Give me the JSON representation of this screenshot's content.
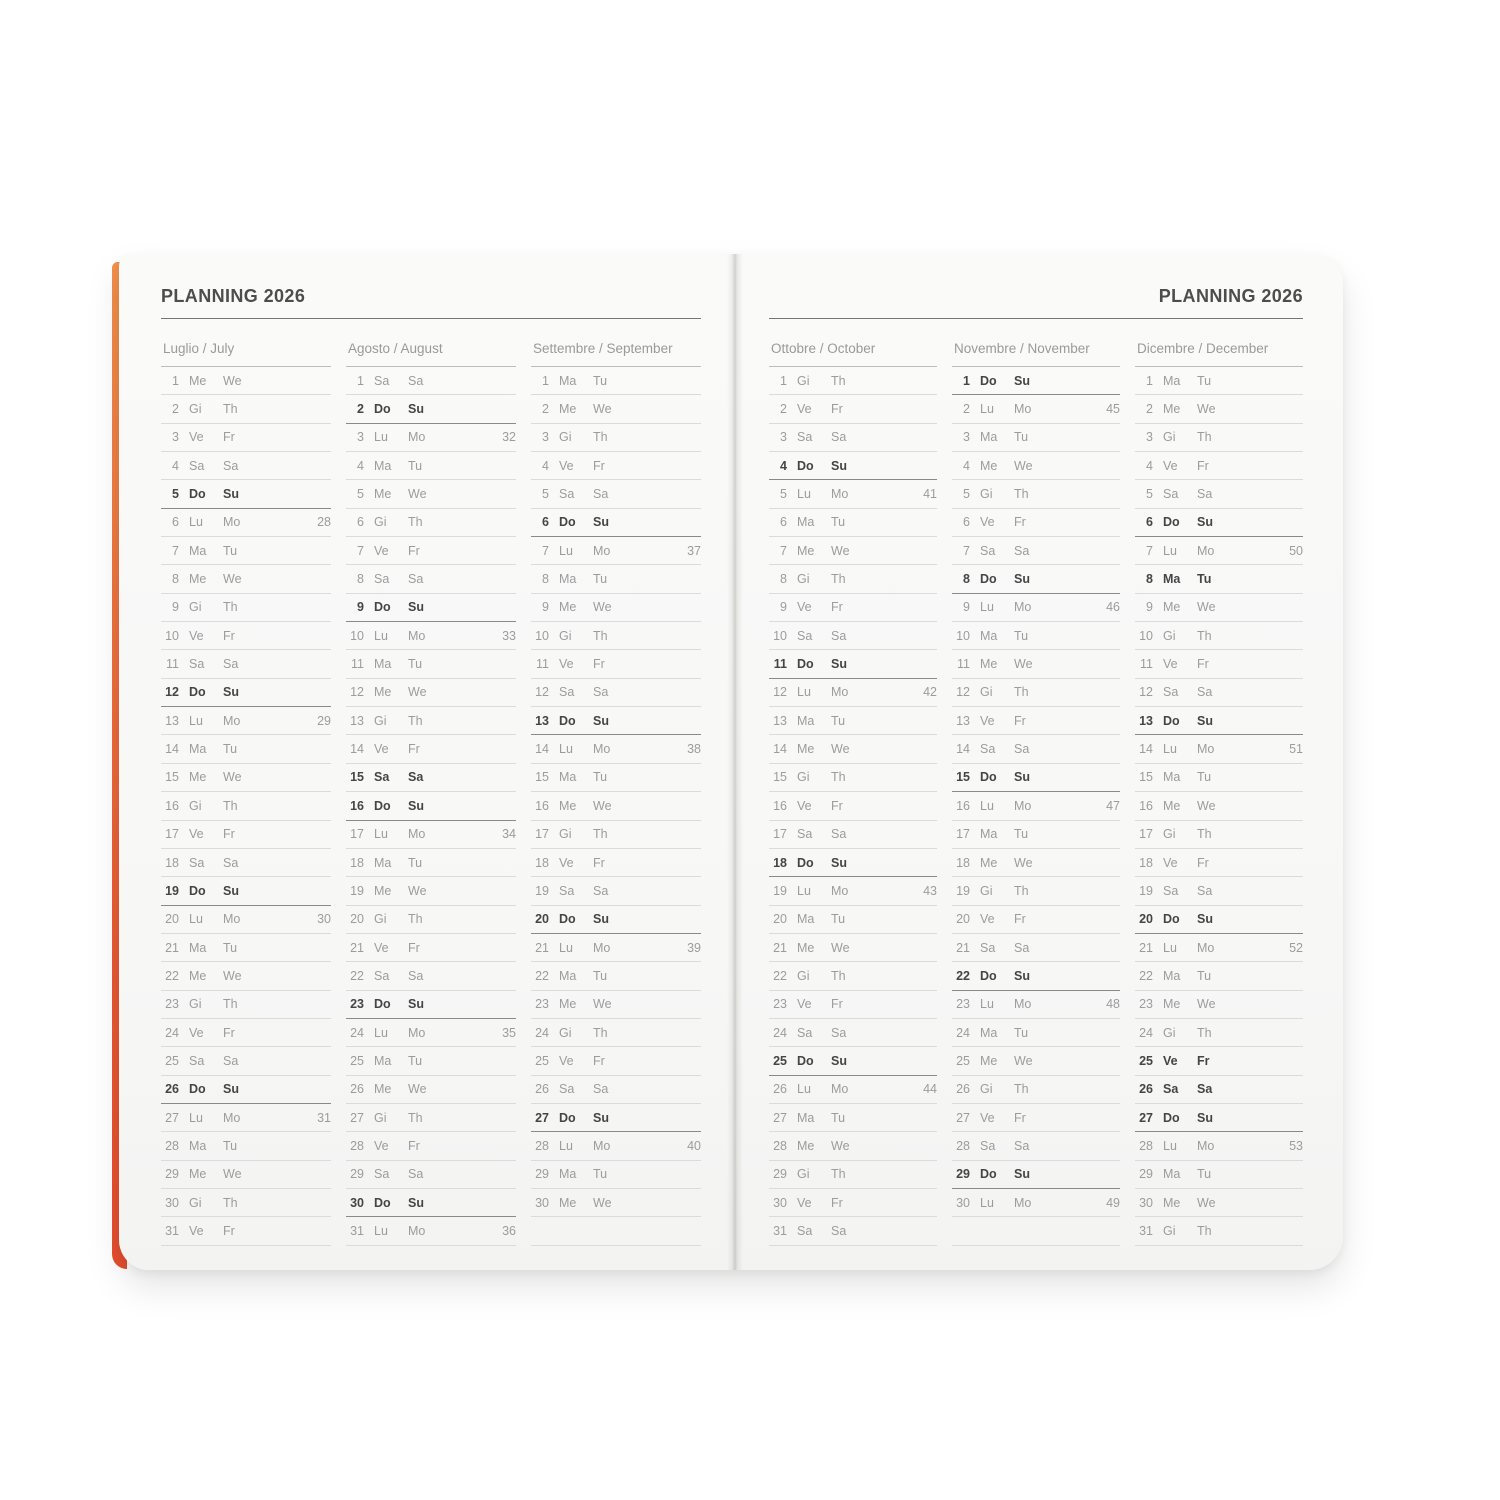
{
  "header": {
    "left_title": "PLANNING 2026",
    "right_title": "PLANNING 2026"
  },
  "colors": {
    "cover_edge_top": "#f2914c",
    "cover_edge_bottom": "#e64e2f",
    "page_background": "#f8f8f7",
    "text_muted": "#9c9c9c",
    "text_bold": "#454545",
    "row_line": "#dbdbda",
    "sunday_line": "#8a8a8a"
  },
  "day_format": [
    "day_number",
    "italian_abbr",
    "english_abbr",
    "week_number",
    "is_bold"
  ],
  "months": [
    {
      "name": "Luglio / July",
      "page": "left",
      "trailing_empty_rows": 0,
      "days": [
        [
          1,
          "Me",
          "We",
          null,
          0
        ],
        [
          2,
          "Gi",
          "Th",
          null,
          0
        ],
        [
          3,
          "Ve",
          "Fr",
          null,
          0
        ],
        [
          4,
          "Sa",
          "Sa",
          null,
          0
        ],
        [
          5,
          "Do",
          "Su",
          null,
          1
        ],
        [
          6,
          "Lu",
          "Mo",
          28,
          0
        ],
        [
          7,
          "Ma",
          "Tu",
          null,
          0
        ],
        [
          8,
          "Me",
          "We",
          null,
          0
        ],
        [
          9,
          "Gi",
          "Th",
          null,
          0
        ],
        [
          10,
          "Ve",
          "Fr",
          null,
          0
        ],
        [
          11,
          "Sa",
          "Sa",
          null,
          0
        ],
        [
          12,
          "Do",
          "Su",
          null,
          1
        ],
        [
          13,
          "Lu",
          "Mo",
          29,
          0
        ],
        [
          14,
          "Ma",
          "Tu",
          null,
          0
        ],
        [
          15,
          "Me",
          "We",
          null,
          0
        ],
        [
          16,
          "Gi",
          "Th",
          null,
          0
        ],
        [
          17,
          "Ve",
          "Fr",
          null,
          0
        ],
        [
          18,
          "Sa",
          "Sa",
          null,
          0
        ],
        [
          19,
          "Do",
          "Su",
          null,
          1
        ],
        [
          20,
          "Lu",
          "Mo",
          30,
          0
        ],
        [
          21,
          "Ma",
          "Tu",
          null,
          0
        ],
        [
          22,
          "Me",
          "We",
          null,
          0
        ],
        [
          23,
          "Gi",
          "Th",
          null,
          0
        ],
        [
          24,
          "Ve",
          "Fr",
          null,
          0
        ],
        [
          25,
          "Sa",
          "Sa",
          null,
          0
        ],
        [
          26,
          "Do",
          "Su",
          null,
          1
        ],
        [
          27,
          "Lu",
          "Mo",
          31,
          0
        ],
        [
          28,
          "Ma",
          "Tu",
          null,
          0
        ],
        [
          29,
          "Me",
          "We",
          null,
          0
        ],
        [
          30,
          "Gi",
          "Th",
          null,
          0
        ],
        [
          31,
          "Ve",
          "Fr",
          null,
          0
        ]
      ]
    },
    {
      "name": "Agosto / August",
      "page": "left",
      "trailing_empty_rows": 0,
      "days": [
        [
          1,
          "Sa",
          "Sa",
          null,
          0
        ],
        [
          2,
          "Do",
          "Su",
          null,
          1
        ],
        [
          3,
          "Lu",
          "Mo",
          32,
          0
        ],
        [
          4,
          "Ma",
          "Tu",
          null,
          0
        ],
        [
          5,
          "Me",
          "We",
          null,
          0
        ],
        [
          6,
          "Gi",
          "Th",
          null,
          0
        ],
        [
          7,
          "Ve",
          "Fr",
          null,
          0
        ],
        [
          8,
          "Sa",
          "Sa",
          null,
          0
        ],
        [
          9,
          "Do",
          "Su",
          null,
          1
        ],
        [
          10,
          "Lu",
          "Mo",
          33,
          0
        ],
        [
          11,
          "Ma",
          "Tu",
          null,
          0
        ],
        [
          12,
          "Me",
          "We",
          null,
          0
        ],
        [
          13,
          "Gi",
          "Th",
          null,
          0
        ],
        [
          14,
          "Ve",
          "Fr",
          null,
          0
        ],
        [
          15,
          "Sa",
          "Sa",
          null,
          1
        ],
        [
          16,
          "Do",
          "Su",
          null,
          1
        ],
        [
          17,
          "Lu",
          "Mo",
          34,
          0
        ],
        [
          18,
          "Ma",
          "Tu",
          null,
          0
        ],
        [
          19,
          "Me",
          "We",
          null,
          0
        ],
        [
          20,
          "Gi",
          "Th",
          null,
          0
        ],
        [
          21,
          "Ve",
          "Fr",
          null,
          0
        ],
        [
          22,
          "Sa",
          "Sa",
          null,
          0
        ],
        [
          23,
          "Do",
          "Su",
          null,
          1
        ],
        [
          24,
          "Lu",
          "Mo",
          35,
          0
        ],
        [
          25,
          "Ma",
          "Tu",
          null,
          0
        ],
        [
          26,
          "Me",
          "We",
          null,
          0
        ],
        [
          27,
          "Gi",
          "Th",
          null,
          0
        ],
        [
          28,
          "Ve",
          "Fr",
          null,
          0
        ],
        [
          29,
          "Sa",
          "Sa",
          null,
          0
        ],
        [
          30,
          "Do",
          "Su",
          null,
          1
        ],
        [
          31,
          "Lu",
          "Mo",
          36,
          0
        ]
      ]
    },
    {
      "name": "Settembre / September",
      "page": "left",
      "trailing_empty_rows": 1,
      "days": [
        [
          1,
          "Ma",
          "Tu",
          null,
          0
        ],
        [
          2,
          "Me",
          "We",
          null,
          0
        ],
        [
          3,
          "Gi",
          "Th",
          null,
          0
        ],
        [
          4,
          "Ve",
          "Fr",
          null,
          0
        ],
        [
          5,
          "Sa",
          "Sa",
          null,
          0
        ],
        [
          6,
          "Do",
          "Su",
          null,
          1
        ],
        [
          7,
          "Lu",
          "Mo",
          37,
          0
        ],
        [
          8,
          "Ma",
          "Tu",
          null,
          0
        ],
        [
          9,
          "Me",
          "We",
          null,
          0
        ],
        [
          10,
          "Gi",
          "Th",
          null,
          0
        ],
        [
          11,
          "Ve",
          "Fr",
          null,
          0
        ],
        [
          12,
          "Sa",
          "Sa",
          null,
          0
        ],
        [
          13,
          "Do",
          "Su",
          null,
          1
        ],
        [
          14,
          "Lu",
          "Mo",
          38,
          0
        ],
        [
          15,
          "Ma",
          "Tu",
          null,
          0
        ],
        [
          16,
          "Me",
          "We",
          null,
          0
        ],
        [
          17,
          "Gi",
          "Th",
          null,
          0
        ],
        [
          18,
          "Ve",
          "Fr",
          null,
          0
        ],
        [
          19,
          "Sa",
          "Sa",
          null,
          0
        ],
        [
          20,
          "Do",
          "Su",
          null,
          1
        ],
        [
          21,
          "Lu",
          "Mo",
          39,
          0
        ],
        [
          22,
          "Ma",
          "Tu",
          null,
          0
        ],
        [
          23,
          "Me",
          "We",
          null,
          0
        ],
        [
          24,
          "Gi",
          "Th",
          null,
          0
        ],
        [
          25,
          "Ve",
          "Fr",
          null,
          0
        ],
        [
          26,
          "Sa",
          "Sa",
          null,
          0
        ],
        [
          27,
          "Do",
          "Su",
          null,
          1
        ],
        [
          28,
          "Lu",
          "Mo",
          40,
          0
        ],
        [
          29,
          "Ma",
          "Tu",
          null,
          0
        ],
        [
          30,
          "Me",
          "We",
          null,
          0
        ]
      ]
    },
    {
      "name": "Ottobre / October",
      "page": "right",
      "trailing_empty_rows": 0,
      "days": [
        [
          1,
          "Gi",
          "Th",
          null,
          0
        ],
        [
          2,
          "Ve",
          "Fr",
          null,
          0
        ],
        [
          3,
          "Sa",
          "Sa",
          null,
          0
        ],
        [
          4,
          "Do",
          "Su",
          null,
          1
        ],
        [
          5,
          "Lu",
          "Mo",
          41,
          0
        ],
        [
          6,
          "Ma",
          "Tu",
          null,
          0
        ],
        [
          7,
          "Me",
          "We",
          null,
          0
        ],
        [
          8,
          "Gi",
          "Th",
          null,
          0
        ],
        [
          9,
          "Ve",
          "Fr",
          null,
          0
        ],
        [
          10,
          "Sa",
          "Sa",
          null,
          0
        ],
        [
          11,
          "Do",
          "Su",
          null,
          1
        ],
        [
          12,
          "Lu",
          "Mo",
          42,
          0
        ],
        [
          13,
          "Ma",
          "Tu",
          null,
          0
        ],
        [
          14,
          "Me",
          "We",
          null,
          0
        ],
        [
          15,
          "Gi",
          "Th",
          null,
          0
        ],
        [
          16,
          "Ve",
          "Fr",
          null,
          0
        ],
        [
          17,
          "Sa",
          "Sa",
          null,
          0
        ],
        [
          18,
          "Do",
          "Su",
          null,
          1
        ],
        [
          19,
          "Lu",
          "Mo",
          43,
          0
        ],
        [
          20,
          "Ma",
          "Tu",
          null,
          0
        ],
        [
          21,
          "Me",
          "We",
          null,
          0
        ],
        [
          22,
          "Gi",
          "Th",
          null,
          0
        ],
        [
          23,
          "Ve",
          "Fr",
          null,
          0
        ],
        [
          24,
          "Sa",
          "Sa",
          null,
          0
        ],
        [
          25,
          "Do",
          "Su",
          null,
          1
        ],
        [
          26,
          "Lu",
          "Mo",
          44,
          0
        ],
        [
          27,
          "Ma",
          "Tu",
          null,
          0
        ],
        [
          28,
          "Me",
          "We",
          null,
          0
        ],
        [
          29,
          "Gi",
          "Th",
          null,
          0
        ],
        [
          30,
          "Ve",
          "Fr",
          null,
          0
        ],
        [
          31,
          "Sa",
          "Sa",
          null,
          0
        ]
      ]
    },
    {
      "name": "Novembre / November",
      "page": "right",
      "trailing_empty_rows": 1,
      "days": [
        [
          1,
          "Do",
          "Su",
          null,
          1
        ],
        [
          2,
          "Lu",
          "Mo",
          45,
          0
        ],
        [
          3,
          "Ma",
          "Tu",
          null,
          0
        ],
        [
          4,
          "Me",
          "We",
          null,
          0
        ],
        [
          5,
          "Gi",
          "Th",
          null,
          0
        ],
        [
          6,
          "Ve",
          "Fr",
          null,
          0
        ],
        [
          7,
          "Sa",
          "Sa",
          null,
          0
        ],
        [
          8,
          "Do",
          "Su",
          null,
          1
        ],
        [
          9,
          "Lu",
          "Mo",
          46,
          0
        ],
        [
          10,
          "Ma",
          "Tu",
          null,
          0
        ],
        [
          11,
          "Me",
          "We",
          null,
          0
        ],
        [
          12,
          "Gi",
          "Th",
          null,
          0
        ],
        [
          13,
          "Ve",
          "Fr",
          null,
          0
        ],
        [
          14,
          "Sa",
          "Sa",
          null,
          0
        ],
        [
          15,
          "Do",
          "Su",
          null,
          1
        ],
        [
          16,
          "Lu",
          "Mo",
          47,
          0
        ],
        [
          17,
          "Ma",
          "Tu",
          null,
          0
        ],
        [
          18,
          "Me",
          "We",
          null,
          0
        ],
        [
          19,
          "Gi",
          "Th",
          null,
          0
        ],
        [
          20,
          "Ve",
          "Fr",
          null,
          0
        ],
        [
          21,
          "Sa",
          "Sa",
          null,
          0
        ],
        [
          22,
          "Do",
          "Su",
          null,
          1
        ],
        [
          23,
          "Lu",
          "Mo",
          48,
          0
        ],
        [
          24,
          "Ma",
          "Tu",
          null,
          0
        ],
        [
          25,
          "Me",
          "We",
          null,
          0
        ],
        [
          26,
          "Gi",
          "Th",
          null,
          0
        ],
        [
          27,
          "Ve",
          "Fr",
          null,
          0
        ],
        [
          28,
          "Sa",
          "Sa",
          null,
          0
        ],
        [
          29,
          "Do",
          "Su",
          null,
          1
        ],
        [
          30,
          "Lu",
          "Mo",
          49,
          0
        ]
      ]
    },
    {
      "name": "Dicembre / December",
      "page": "right",
      "trailing_empty_rows": 0,
      "days": [
        [
          1,
          "Ma",
          "Tu",
          null,
          0
        ],
        [
          2,
          "Me",
          "We",
          null,
          0
        ],
        [
          3,
          "Gi",
          "Th",
          null,
          0
        ],
        [
          4,
          "Ve",
          "Fr",
          null,
          0
        ],
        [
          5,
          "Sa",
          "Sa",
          null,
          0
        ],
        [
          6,
          "Do",
          "Su",
          null,
          1
        ],
        [
          7,
          "Lu",
          "Mo",
          50,
          0
        ],
        [
          8,
          "Ma",
          "Tu",
          null,
          1
        ],
        [
          9,
          "Me",
          "We",
          null,
          0
        ],
        [
          10,
          "Gi",
          "Th",
          null,
          0
        ],
        [
          11,
          "Ve",
          "Fr",
          null,
          0
        ],
        [
          12,
          "Sa",
          "Sa",
          null,
          0
        ],
        [
          13,
          "Do",
          "Su",
          null,
          1
        ],
        [
          14,
          "Lu",
          "Mo",
          51,
          0
        ],
        [
          15,
          "Ma",
          "Tu",
          null,
          0
        ],
        [
          16,
          "Me",
          "We",
          null,
          0
        ],
        [
          17,
          "Gi",
          "Th",
          null,
          0
        ],
        [
          18,
          "Ve",
          "Fr",
          null,
          0
        ],
        [
          19,
          "Sa",
          "Sa",
          null,
          0
        ],
        [
          20,
          "Do",
          "Su",
          null,
          1
        ],
        [
          21,
          "Lu",
          "Mo",
          52,
          0
        ],
        [
          22,
          "Ma",
          "Tu",
          null,
          0
        ],
        [
          23,
          "Me",
          "We",
          null,
          0
        ],
        [
          24,
          "Gi",
          "Th",
          null,
          0
        ],
        [
          25,
          "Ve",
          "Fr",
          null,
          1
        ],
        [
          26,
          "Sa",
          "Sa",
          null,
          1
        ],
        [
          27,
          "Do",
          "Su",
          null,
          1
        ],
        [
          28,
          "Lu",
          "Mo",
          53,
          0
        ],
        [
          29,
          "Ma",
          "Tu",
          null,
          0
        ],
        [
          30,
          "Me",
          "We",
          null,
          0
        ],
        [
          31,
          "Gi",
          "Th",
          null,
          0
        ]
      ]
    }
  ]
}
